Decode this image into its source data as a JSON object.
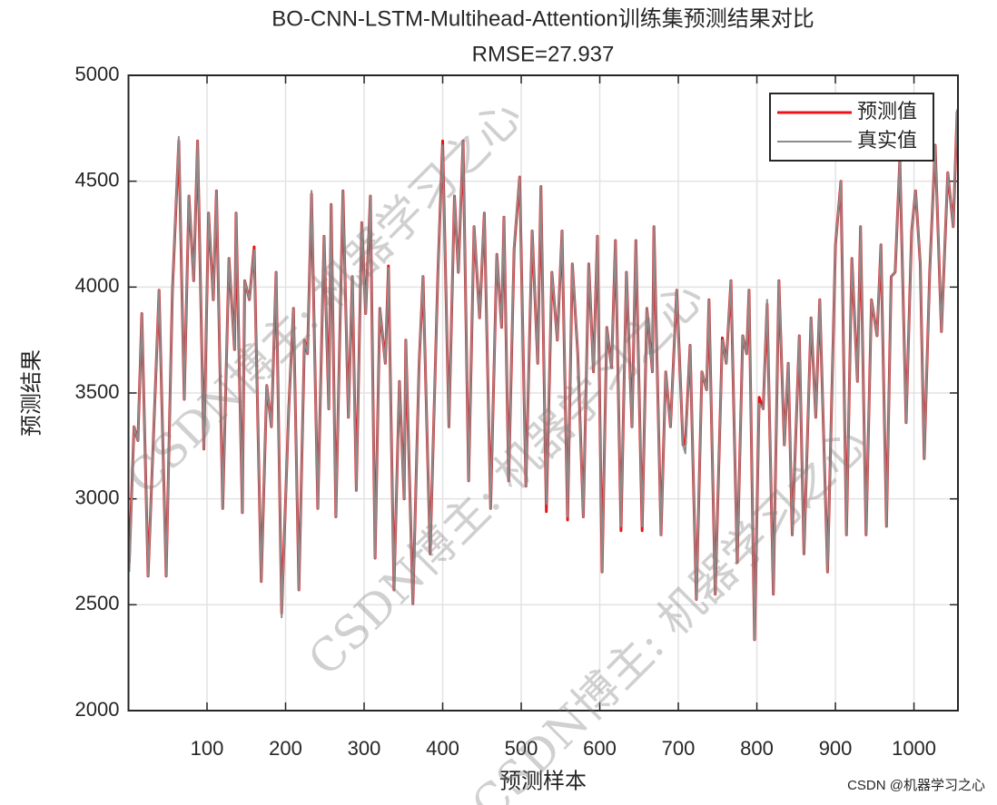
{
  "chart_data": {
    "type": "line",
    "title": "BO-CNN-LSTM-Multihead-Attention训练集预测结果对比",
    "subtitle": "RMSE=27.937",
    "xlabel": "预测样本",
    "ylabel": "预测结果",
    "watermark": "CSDN博主: 机器学习之心",
    "credit": "CSDN @机器学习之心",
    "x": [
      1,
      7,
      12,
      17,
      25,
      39,
      48,
      56,
      64,
      71,
      77,
      83,
      88,
      96,
      102,
      108,
      112,
      120,
      128,
      135,
      137,
      145,
      148,
      154,
      160,
      169,
      176,
      182,
      188,
      195,
      204,
      210,
      217,
      224,
      228,
      233,
      241,
      249,
      255,
      258,
      264,
      273,
      280,
      285,
      290,
      297,
      302,
      308,
      314,
      320,
      327,
      331,
      338,
      345,
      351,
      353,
      362,
      370,
      375,
      384,
      394,
      400,
      408,
      415,
      420,
      426,
      433,
      440,
      447,
      453,
      461,
      469,
      475,
      478,
      484,
      491,
      498,
      506,
      514,
      521,
      525,
      532,
      539,
      546,
      552,
      559,
      565,
      572,
      579,
      586,
      592,
      597,
      603,
      609,
      615,
      620,
      627,
      634,
      641,
      646,
      654,
      660,
      667,
      669,
      678,
      684,
      690,
      698,
      706,
      709,
      715,
      723,
      730,
      736,
      739,
      747,
      756,
      761,
      767,
      775,
      782,
      787,
      790,
      797,
      803,
      808,
      813,
      821,
      828,
      835,
      840,
      845,
      854,
      860,
      869,
      875,
      880,
      890,
      900,
      907,
      914,
      921,
      928,
      932,
      939,
      946,
      953,
      958,
      965,
      971,
      976,
      982,
      990,
      997,
      1002,
      1008,
      1013,
      1020,
      1027,
      1035,
      1043,
      1050,
      1055
    ],
    "series": [
      {
        "name": "预测值",
        "color": "#e8141a",
        "values": [
          2700,
          3340,
          3275,
          3875,
          2635,
          3985,
          2635,
          3985,
          4690,
          3470,
          4430,
          4030,
          4690,
          3235,
          4350,
          3940,
          4455,
          2955,
          4135,
          3705,
          4350,
          2935,
          4030,
          3940,
          4190,
          2610,
          3535,
          3340,
          4070,
          2460,
          3425,
          3900,
          2570,
          3750,
          3685,
          4440,
          2955,
          4240,
          3425,
          4390,
          2915,
          4455,
          3385,
          4050,
          3040,
          4305,
          3875,
          4430,
          2720,
          3900,
          3640,
          4100,
          2570,
          3555,
          3000,
          3750,
          2505,
          3640,
          4050,
          2740,
          4070,
          4690,
          3340,
          4430,
          4070,
          4690,
          3085,
          4285,
          3855,
          4350,
          2955,
          4155,
          3810,
          4330,
          3085,
          4180,
          4520,
          3060,
          4265,
          3640,
          4475,
          2940,
          4070,
          3750,
          4265,
          2900,
          4110,
          3685,
          2915,
          4110,
          3600,
          4240,
          2655,
          3810,
          3620,
          4220,
          2850,
          4070,
          3340,
          4220,
          2850,
          3900,
          3600,
          4285,
          2830,
          3600,
          3340,
          3985,
          3255,
          3260,
          3725,
          2525,
          3600,
          3515,
          3940,
          2550,
          3760,
          3640,
          4030,
          2700,
          3770,
          3685,
          3985,
          2335,
          3480,
          3425,
          3920,
          2550,
          4030,
          3255,
          3640,
          2830,
          3770,
          2740,
          3855,
          3385,
          3940,
          2655,
          4200,
          4500,
          2830,
          4135,
          3555,
          4285,
          2830,
          3940,
          3770,
          4200,
          2870,
          4050,
          4070,
          4605,
          3360,
          4265,
          4455,
          4110,
          3190,
          4070,
          4670,
          3790,
          4540,
          4285,
          4830
        ]
      },
      {
        "name": "真实值",
        "color": "#8c8c8c",
        "values": [
          2655,
          3340,
          3275,
          3875,
          2635,
          3985,
          2635,
          3985,
          4710,
          3470,
          4430,
          4030,
          4690,
          3235,
          4350,
          3940,
          4455,
          2955,
          4135,
          3705,
          4350,
          2935,
          4030,
          3940,
          4175,
          2610,
          3535,
          3340,
          4070,
          2440,
          3425,
          3900,
          2570,
          3750,
          3685,
          4455,
          2955,
          4240,
          3425,
          4390,
          2915,
          4455,
          3385,
          4050,
          3040,
          4305,
          3875,
          4430,
          2720,
          3900,
          3640,
          4090,
          2570,
          3555,
          3000,
          3750,
          2505,
          3640,
          4050,
          2740,
          4070,
          4670,
          3340,
          4430,
          4070,
          4690,
          3085,
          4285,
          3855,
          4350,
          2955,
          4155,
          3810,
          4330,
          3085,
          4200,
          4520,
          3060,
          4265,
          3640,
          4475,
          2975,
          4070,
          3750,
          4265,
          2915,
          4110,
          3685,
          2915,
          4110,
          3600,
          4240,
          2655,
          3810,
          3620,
          4220,
          2870,
          4070,
          3340,
          4220,
          2870,
          3900,
          3600,
          4285,
          2830,
          3600,
          3340,
          3985,
          3255,
          3215,
          3725,
          2525,
          3600,
          3515,
          3940,
          2550,
          3750,
          3640,
          4030,
          2700,
          3770,
          3685,
          3985,
          2335,
          3450,
          3425,
          3940,
          2550,
          4030,
          3255,
          3640,
          2830,
          3770,
          2740,
          3855,
          3385,
          3940,
          2655,
          4200,
          4500,
          2830,
          4135,
          3555,
          4285,
          2830,
          3940,
          3770,
          4200,
          2870,
          4050,
          4070,
          4605,
          3360,
          4265,
          4455,
          4110,
          3190,
          4070,
          4670,
          3790,
          4540,
          4285,
          4840
        ]
      }
    ],
    "xlim": [
      0,
      1056
    ],
    "xticks": [
      100,
      200,
      300,
      400,
      500,
      600,
      700,
      800,
      900,
      1000
    ],
    "ylim": [
      2000,
      5000
    ],
    "yticks": [
      2000,
      2500,
      3000,
      3500,
      4000,
      4500,
      5000
    ],
    "grid": true,
    "legend": "northeast"
  }
}
